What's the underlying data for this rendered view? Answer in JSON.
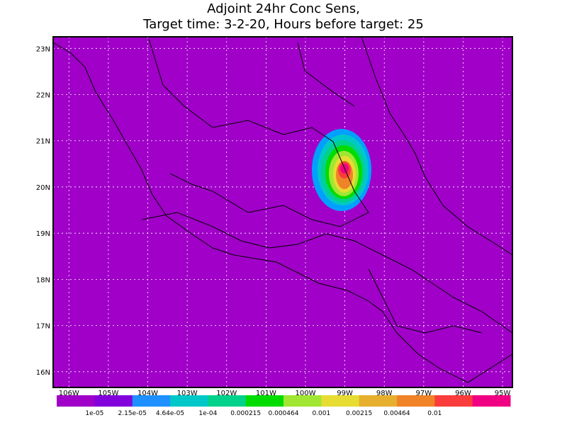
{
  "header": {
    "title_lines": [
      "Adjoint 24hr Conc Sens,",
      "Target time: 3-2-20, Hours before target: 25"
    ]
  },
  "map": {
    "lonlim": [
      -106.4,
      -94.75
    ],
    "latlim": [
      15.66,
      23.25
    ],
    "grid": true,
    "lat_ticks": [
      {
        "value": 16,
        "label": "16N"
      },
      {
        "value": 17,
        "label": "17N"
      },
      {
        "value": 18,
        "label": "18N"
      },
      {
        "value": 19,
        "label": "19N"
      },
      {
        "value": 20,
        "label": "20N"
      },
      {
        "value": 21,
        "label": "21N"
      },
      {
        "value": 22,
        "label": "22N"
      },
      {
        "value": 23,
        "label": "23N"
      }
    ],
    "lon_ticks": [
      {
        "value": -106,
        "label": "106W"
      },
      {
        "value": -105,
        "label": "105W"
      },
      {
        "value": -104,
        "label": "104W"
      },
      {
        "value": -103,
        "label": "103W"
      },
      {
        "value": -102,
        "label": "102W"
      },
      {
        "value": -101,
        "label": "101W"
      },
      {
        "value": -100,
        "label": "100W"
      },
      {
        "value": -99,
        "label": "99W"
      },
      {
        "value": -98,
        "label": "98W"
      },
      {
        "value": -97,
        "label": "97W"
      },
      {
        "value": -96,
        "label": "96W"
      },
      {
        "value": -95,
        "label": "95W"
      }
    ]
  },
  "colorbar": {
    "colors": [
      "#a000c8",
      "#8200dc",
      "#1e90ff",
      "#00c8c8",
      "#00d28c",
      "#00dc00",
      "#a0e632",
      "#e6dc32",
      "#e6af2d",
      "#f08228",
      "#fa3c3c",
      "#f00082"
    ],
    "labels": [
      "1e-05",
      "2.15e-05",
      "4.64e-05",
      "1e-04",
      "0.000215",
      "0.000464",
      "0.001",
      "0.00215",
      "0.00464",
      "0.01"
    ]
  }
}
